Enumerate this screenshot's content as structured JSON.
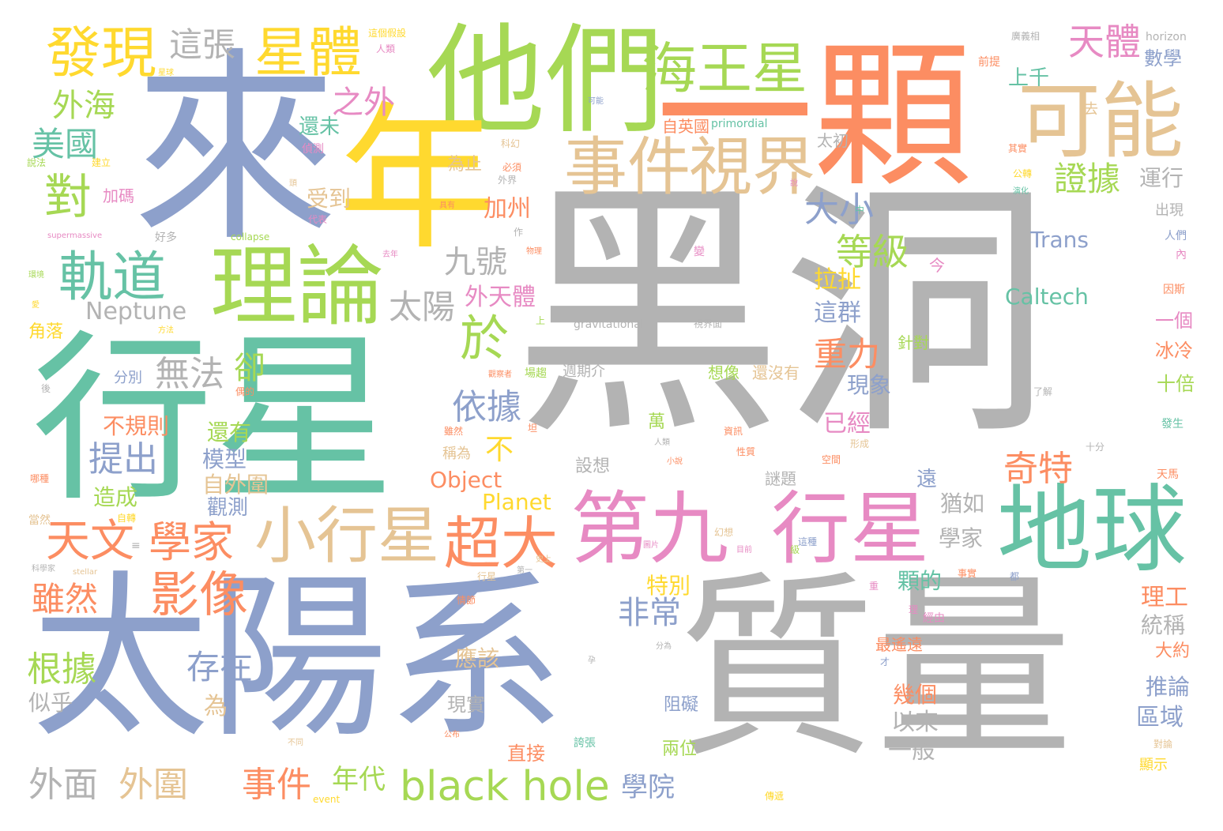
{
  "colors": {
    "gray": "#b3b3b3",
    "blue": "#8da0cb",
    "yellow": "#ffd92f",
    "green": "#a6d854",
    "orange": "#fc8d62",
    "teal": "#66c2a5",
    "tan": "#e5c494",
    "pink": "#e78ac3"
  },
  "words": {
    "w01": "黑洞",
    "w02": "太陽系",
    "w03": "質量",
    "w04": "來",
    "w05": "他們",
    "w06": "一顆",
    "w07": "年",
    "w08": "行星",
    "w09": "理論",
    "w10": "可能",
    "w11": "地球",
    "w12": "第九",
    "w13": "行星",
    "w14": "事件",
    "w15": "視界",
    "w16": "海王星",
    "w17": "星體",
    "w18": "發現",
    "w19": "軌道",
    "w20": "小行星",
    "w21": "超大",
    "w22": "black hole",
    "w23": "影像",
    "w24": "天文",
    "w25": "學家",
    "w26": "對",
    "w27": "於",
    "w28": "天體",
    "w29": "證據",
    "w30": "大小",
    "w31": "等級",
    "w32": "外海",
    "w33": "美國",
    "w34": "這張",
    "w35": "之外",
    "w36": "九號",
    "w37": "太陽",
    "w38": "Neptune",
    "w39": "無法",
    "w40": "卻",
    "w41": "依據",
    "w42": "重力",
    "w43": "奇特",
    "w44": "提出",
    "w45": "不規則",
    "w46": "根據",
    "w47": "雖然",
    "w48": "存在",
    "w49": "外面",
    "w50": "外圍",
    "w51": "事件",
    "w52": "年代",
    "w53": "學院",
    "w54": "非常",
    "w55": "特別",
    "w56": "Object",
    "w57": "Planet",
    "w58": "Trans",
    "w59": "Caltech",
    "w60": "加州",
    "w61": "受到",
    "w62": "還未",
    "w63": "為止",
    "w64": "外天體",
    "w65": "拉扯",
    "w66": "這群",
    "w67": "現象",
    "w68": "已經",
    "w69": "上千",
    "w70": "數學",
    "w71": "運行",
    "w72": "理工",
    "w73": "統稱",
    "w74": "區域",
    "w75": "推論",
    "w76": "以來",
    "w77": "一般",
    "w78": "幾個",
    "w79": "現實",
    "w80": "應該",
    "w81": "還有",
    "w82": "模型",
    "w83": "自外圍",
    "w84": "觀測",
    "w85": "造成",
    "w86": "似乎",
    "w87": "為",
    "w88": "不",
    "w89": "學家",
    "w90": "猶如",
    "w91": "顆的",
    "w92": "十倍",
    "w93": "冰冷",
    "w94": "一個",
    "w95": "大約",
    "w96": "顯示",
    "w97": "兩位",
    "w98": "直接",
    "w99": "阻礙",
    "w100": "設想",
    "w101": "稱為",
    "w102": "想像",
    "w103": "還沒有",
    "w104": "最遙遠",
    "w105": "萬",
    "w106": "謎題",
    "w107": "遠",
    "w108": "分別",
    "w109": "角落",
    "w110": "加碼",
    "w111": "太初",
    "w112": "出現",
    "w113": "針對",
    "w114": "自英國",
    "w115": "primordial",
    "w116": "gravitational",
    "w117": "horizon",
    "w118": "supermassive",
    "w119": "collapse",
    "w120": "stellar",
    "w121": "event",
    "w122": "好多",
    "w123": "偵測",
    "w124": "必須",
    "w125": "建立",
    "w126": "說法",
    "w127": "代表",
    "w128": "具有",
    "w129": "公轉",
    "w130": "其實",
    "w131": "演化",
    "w132": "人們",
    "w133": "因斯",
    "w134": "發生",
    "w135": "天馬",
    "w136": "前提",
    "w137": "去",
    "w138": "今",
    "w139": "內",
    "w140": "可能",
    "w141": "這個假設",
    "w142": "人類",
    "w143": "廣義相",
    "w144": "星球",
    "w145": "科幻",
    "w146": "外界",
    "w147": "了解",
    "w148": "十分",
    "w149": "形成",
    "w150": "空間",
    "w151": "性質",
    "w152": "幻想",
    "w153": "目前",
    "w154": "事實",
    "w155": "都",
    "w156": "當然",
    "w157": "哪種",
    "w158": "自轉",
    "w159": "科學家",
    "w160": "後",
    "w161": "方法",
    "w162": "去年",
    "w163": "作",
    "w164": "變",
    "w165": "上",
    "w166": "視界面",
    "w167": "偶的",
    "w168": "場趨",
    "w169": "週期介",
    "w170": "觀察者",
    "w171": "坦",
    "w172": "雖然",
    "w173": "人類",
    "w174": "小說",
    "w175": "情節",
    "w176": "行星",
    "w177": "第一",
    "w178": "史上",
    "w179": "誇張",
    "w180": "分為",
    "w181": "不同",
    "w182": "公布",
    "w183": "對論",
    "w184": "傳遞",
    "w185": "經由",
    "w186": "這種",
    "w187": "圖片",
    "w188": "物理",
    "w189": "環境",
    "w190": "愛",
    "w191": "頭",
    "w192": "說",
    "w193": "中",
    "w194": "重",
    "w195": "級",
    "w196": "才",
    "w197": "孕",
    "w198": "≡",
    "w199": "理",
    "w200": "資訊"
  }
}
